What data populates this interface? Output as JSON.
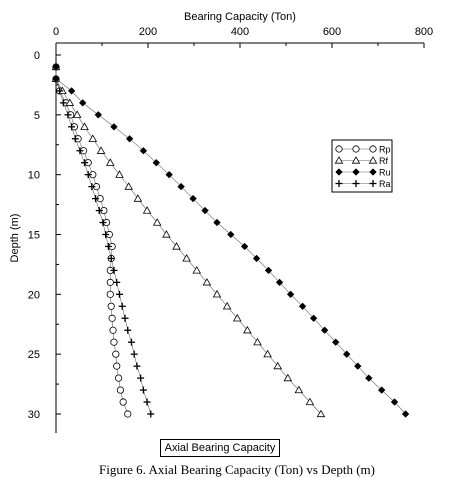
{
  "chart_data": {
    "type": "scatter",
    "title": "",
    "xlabel": "Bearing Capacity (Ton)",
    "ylabel": "Depth (m)",
    "x_axis_position": "top",
    "y_axis_inverted": true,
    "xlim": [
      0,
      800
    ],
    "ylim": [
      0,
      30
    ],
    "xticks": [
      0,
      200,
      400,
      600,
      800
    ],
    "yticks": [
      0,
      5,
      10,
      15,
      20,
      25,
      30
    ],
    "grid": false,
    "legend_position": "right",
    "series": [
      {
        "name": "Rp",
        "marker": "circle-open",
        "color": "#000000",
        "points": [
          [
            0,
            1
          ],
          [
            0,
            2
          ],
          [
            8,
            3
          ],
          [
            22,
            4
          ],
          [
            32,
            5
          ],
          [
            40,
            6
          ],
          [
            48,
            7
          ],
          [
            60,
            8
          ],
          [
            70,
            9
          ],
          [
            80,
            10
          ],
          [
            88,
            11
          ],
          [
            96,
            12
          ],
          [
            104,
            13
          ],
          [
            110,
            14
          ],
          [
            116,
            15
          ],
          [
            122,
            16
          ],
          [
            120,
            17
          ],
          [
            118,
            18
          ],
          [
            118,
            19
          ],
          [
            118,
            20
          ],
          [
            120,
            21
          ],
          [
            122,
            22
          ],
          [
            124,
            23
          ],
          [
            126,
            24
          ],
          [
            130,
            25
          ],
          [
            132,
            26
          ],
          [
            136,
            27
          ],
          [
            140,
            28
          ],
          [
            146,
            29
          ],
          [
            156,
            30
          ]
        ]
      },
      {
        "name": "Rf",
        "marker": "triangle-open",
        "color": "#000000",
        "points": [
          [
            0,
            1
          ],
          [
            0,
            2
          ],
          [
            14,
            3
          ],
          [
            30,
            4
          ],
          [
            46,
            5
          ],
          [
            62,
            6
          ],
          [
            80,
            7
          ],
          [
            98,
            8
          ],
          [
            118,
            9
          ],
          [
            138,
            10
          ],
          [
            158,
            11
          ],
          [
            178,
            12
          ],
          [
            198,
            13
          ],
          [
            220,
            14
          ],
          [
            240,
            15
          ],
          [
            262,
            16
          ],
          [
            284,
            17
          ],
          [
            306,
            18
          ],
          [
            328,
            19
          ],
          [
            350,
            20
          ],
          [
            372,
            21
          ],
          [
            394,
            22
          ],
          [
            416,
            23
          ],
          [
            438,
            24
          ],
          [
            460,
            25
          ],
          [
            482,
            26
          ],
          [
            504,
            27
          ],
          [
            528,
            28
          ],
          [
            552,
            29
          ],
          [
            576,
            30
          ]
        ]
      },
      {
        "name": "Ru",
        "marker": "diamond-filled",
        "color": "#000000",
        "points": [
          [
            0,
            1
          ],
          [
            0,
            2
          ],
          [
            34,
            3
          ],
          [
            58,
            4
          ],
          [
            92,
            5
          ],
          [
            126,
            6
          ],
          [
            160,
            7
          ],
          [
            190,
            8
          ],
          [
            218,
            9
          ],
          [
            246,
            10
          ],
          [
            272,
            11
          ],
          [
            298,
            12
          ],
          [
            324,
            13
          ],
          [
            350,
            14
          ],
          [
            380,
            15
          ],
          [
            410,
            16
          ],
          [
            436,
            17
          ],
          [
            462,
            18
          ],
          [
            486,
            19
          ],
          [
            510,
            20
          ],
          [
            536,
            21
          ],
          [
            560,
            22
          ],
          [
            584,
            23
          ],
          [
            608,
            24
          ],
          [
            632,
            25
          ],
          [
            656,
            26
          ],
          [
            680,
            27
          ],
          [
            708,
            28
          ],
          [
            736,
            29
          ],
          [
            760,
            30
          ]
        ]
      },
      {
        "name": "Ra",
        "marker": "plus",
        "color": "#000000",
        "points": [
          [
            0,
            1
          ],
          [
            0,
            2
          ],
          [
            8,
            3
          ],
          [
            16,
            4
          ],
          [
            26,
            5
          ],
          [
            34,
            6
          ],
          [
            42,
            7
          ],
          [
            52,
            8
          ],
          [
            62,
            9
          ],
          [
            70,
            10
          ],
          [
            78,
            11
          ],
          [
            86,
            12
          ],
          [
            94,
            13
          ],
          [
            102,
            14
          ],
          [
            108,
            15
          ],
          [
            114,
            16
          ],
          [
            120,
            17
          ],
          [
            126,
            18
          ],
          [
            132,
            19
          ],
          [
            138,
            20
          ],
          [
            144,
            21
          ],
          [
            150,
            22
          ],
          [
            156,
            23
          ],
          [
            164,
            24
          ],
          [
            170,
            25
          ],
          [
            176,
            26
          ],
          [
            184,
            27
          ],
          [
            190,
            28
          ],
          [
            198,
            29
          ],
          [
            206,
            30
          ]
        ]
      }
    ]
  },
  "caption_box": "Axial Bearing Capacity",
  "figure_caption": "Figure 6. Axial Bearing Capacity (Ton) vs Depth (m)"
}
